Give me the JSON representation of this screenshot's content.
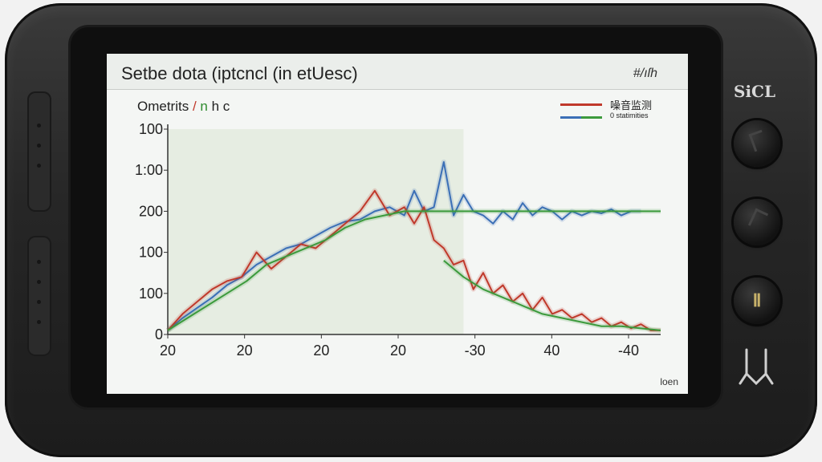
{
  "device": {
    "brand_label": "SiCL",
    "controls": [
      {
        "name": "dial-top",
        "icon": "dial-icon"
      },
      {
        "name": "dial-middle",
        "icon": "dial-icon"
      },
      {
        "name": "dial-bottom",
        "icon": "pause-like-icon",
        "glyph": "Ⅱ"
      }
    ],
    "bottom_icon": "wave-down-icon"
  },
  "screen": {
    "title": "Setbe dota (iptcncl (in etUesc)",
    "title_right": "#/ıſh",
    "subtitle_text": "Ometrits ",
    "subtitle_red": "/",
    "subtitle_green": " n",
    "subtitle_end": " h c",
    "footer": "lοen"
  },
  "chart_data": {
    "type": "line",
    "title": "",
    "xlabel": "",
    "ylabel": "",
    "x_ticks": [
      "20",
      "20",
      "20",
      "20",
      "-30",
      "40",
      "-40"
    ],
    "y_ticks": [
      "100",
      "1:00",
      "200",
      "100",
      "100",
      "0"
    ],
    "y_tick_positions": [
      100,
      80,
      60,
      40,
      20,
      0
    ],
    "xlim": [
      0,
      100
    ],
    "ylim": [
      0,
      100
    ],
    "grid": false,
    "legend_position": "top-right",
    "legend": [
      {
        "label": "噪音监测",
        "color": "#c0392b"
      },
      {
        "label": "0 statimities",
        "color": "#3b6fb6",
        "color2": "#3c9a3c"
      }
    ],
    "shaded_region": {
      "x_start": 0,
      "x_end": 60,
      "color": "#e6ede2"
    },
    "series": [
      {
        "name": "",
        "color": "#3b6fb6",
        "x": [
          0,
          3,
          6,
          9,
          12,
          15,
          18,
          21,
          24,
          27,
          30,
          33,
          36,
          39,
          42,
          45,
          48,
          50,
          52,
          54,
          56,
          58,
          60,
          62,
          64,
          66,
          68,
          70,
          72,
          74,
          76,
          78,
          80,
          82,
          84,
          86,
          88,
          90,
          92,
          94,
          96
        ],
        "y": [
          2,
          8,
          13,
          18,
          24,
          28,
          34,
          38,
          42,
          44,
          48,
          52,
          55,
          56,
          60,
          62,
          58,
          70,
          60,
          62,
          84,
          58,
          68,
          60,
          58,
          54,
          60,
          56,
          64,
          58,
          62,
          60,
          56,
          60,
          58,
          60,
          59,
          61,
          58,
          60,
          60
        ]
      },
      {
        "name": "",
        "color": "#c0392b",
        "x": [
          0,
          3,
          6,
          9,
          12,
          15,
          18,
          21,
          24,
          27,
          30,
          33,
          36,
          39,
          42,
          45,
          48,
          50,
          52,
          54,
          56,
          58,
          60,
          62,
          64,
          66,
          68,
          70,
          72,
          74,
          76,
          78,
          80,
          82,
          84,
          86,
          88,
          90,
          92,
          94,
          96,
          98,
          100
        ],
        "y": [
          2,
          10,
          16,
          22,
          26,
          28,
          40,
          32,
          38,
          44,
          42,
          48,
          54,
          60,
          70,
          58,
          62,
          54,
          62,
          46,
          42,
          34,
          36,
          22,
          30,
          20,
          24,
          16,
          20,
          12,
          18,
          10,
          12,
          8,
          10,
          6,
          8,
          4,
          6,
          3,
          5,
          2,
          2
        ]
      },
      {
        "name": "",
        "color": "#3c9a3c",
        "x": [
          0,
          4,
          8,
          12,
          16,
          20,
          24,
          28,
          32,
          36,
          40,
          44,
          48,
          50,
          52,
          54,
          56,
          58,
          60,
          64,
          68,
          72,
          76,
          80,
          84,
          88,
          92,
          96,
          100
        ],
        "y": [
          2,
          8,
          14,
          20,
          26,
          34,
          38,
          42,
          46,
          52,
          56,
          58,
          60,
          60,
          60,
          60,
          60,
          60,
          60,
          60,
          60,
          60,
          60,
          60,
          60,
          60,
          60,
          60,
          60
        ]
      },
      {
        "name": "",
        "color": "#3c9a3c",
        "x": [
          56,
          60,
          64,
          68,
          72,
          76,
          80,
          84,
          88,
          92,
          96,
          100
        ],
        "y": [
          36,
          28,
          22,
          18,
          14,
          10,
          8,
          6,
          4,
          4,
          3,
          2
        ]
      }
    ]
  }
}
